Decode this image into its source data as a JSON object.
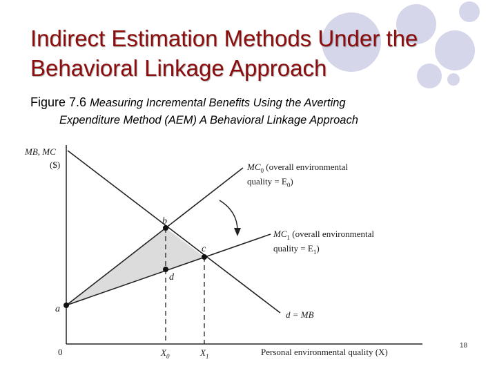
{
  "slide": {
    "title": "Indirect Estimation Methods Under the Behavioral Linkage Approach",
    "figure_label": "Figure 7.6",
    "figure_title_line1": "Measuring Incremental Benefits Using the Averting",
    "figure_title_line2": "Expenditure Method (AEM) A Behavioral Linkage Approach",
    "page_number": "18"
  },
  "diagram": {
    "y_axis_label_line1": "MB, MC",
    "y_axis_label_line2": "($)",
    "x_axis_label": "Personal environmental quality (X)",
    "origin": "0",
    "x0": "X",
    "x0_sub": "0",
    "x1": "X",
    "x1_sub": "1",
    "mc0_line1": "MC",
    "mc0_sub": "0",
    "mc0_line1_rest": " (overall environmental",
    "mc0_line2": "quality = E",
    "mc0_line2_sub": "0",
    "mc0_line2_end": ")",
    "mc1_line1": "MC",
    "mc1_sub": "1",
    "mc1_line1_rest": " (overall environmental",
    "mc1_line2": "quality = E",
    "mc1_line2_sub": "1",
    "mc1_line2_end": ")",
    "demand_label": "d = MB",
    "point_a": "a",
    "point_b": "b",
    "point_c": "c",
    "point_d": "d"
  },
  "colors": {
    "title": "#8b0d0d",
    "shaded_area": "#dcdcdc",
    "decoration": "#d6d6ea"
  }
}
